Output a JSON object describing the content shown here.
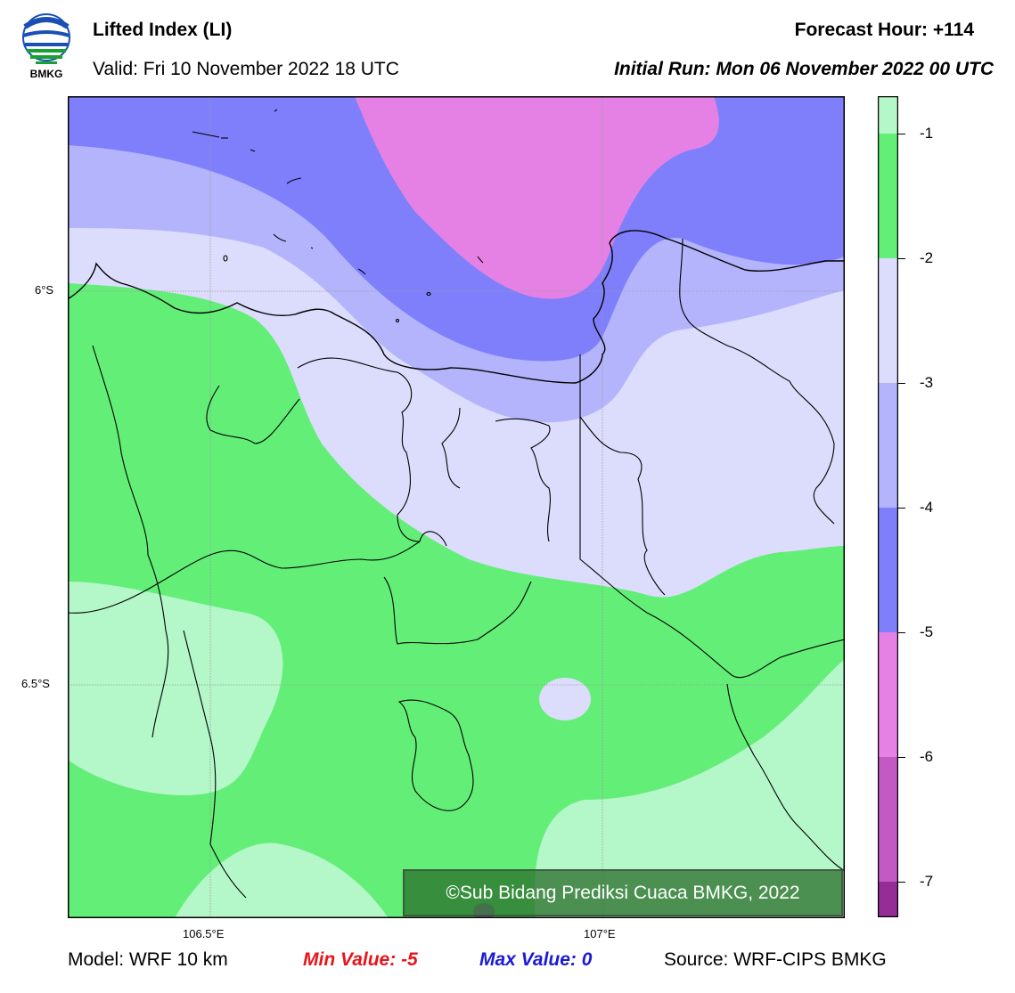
{
  "header": {
    "title": "Lifted Index (LI)",
    "valid": "Valid: Fri 10 November 2022 18 UTC",
    "forecast_hour": "Forecast Hour: +114",
    "initial_run": "Initial Run: Mon 06 November 2022 00 UTC",
    "logo_text": "BMKG"
  },
  "axes": {
    "lat_labels": [
      "6°S",
      "6.5°S"
    ],
    "lon_labels": [
      "106.5°E",
      "107°E"
    ]
  },
  "colorbar": {
    "ticks": [
      "-1",
      "-2",
      "-3",
      "-4",
      "-5",
      "-6",
      "-7"
    ],
    "colors": [
      "#b4f7c8",
      "#63ee78",
      "#dcdcfc",
      "#b4b4fc",
      "#7f7ffc",
      "#e581e5",
      "#c35ac3",
      "#962d96"
    ]
  },
  "footer": {
    "model": "Model: WRF 10 km",
    "min_value": "Min Value: -5",
    "max_value": "Max Value: 0",
    "source": "Source: WRF-CIPS BMKG"
  },
  "watermark": "©Sub Bidang Prediksi Cuaca BMKG, 2022"
}
